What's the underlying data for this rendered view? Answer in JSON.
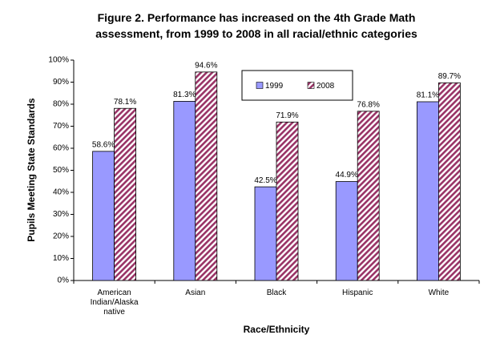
{
  "chart_data": {
    "type": "bar",
    "title": "Figure 2.  Performance has increased on the 4th Grade Math assessment, from 1999 to 2008 in all racial/ethnic categories",
    "x_label": "Race/Ethnicity",
    "y_label": "Pupils Meeting State Standards",
    "categories": [
      "American Indian/Alaska native",
      "Asian",
      "Black",
      "Hispanic",
      "White"
    ],
    "series": [
      {
        "name": "1999",
        "color": "#9999ff",
        "values": [
          58.6,
          81.3,
          42.5,
          44.9,
          81.1
        ],
        "value_labels": [
          "58.6%",
          "81.3%",
          "42.5%",
          "44.9%",
          "81.1%"
        ]
      },
      {
        "name": "2008",
        "color": "#993366",
        "pattern": "hatch",
        "values": [
          78.1,
          94.6,
          71.9,
          76.8,
          89.7
        ],
        "value_labels": [
          "78.1%",
          "94.6%",
          "71.9%",
          "76.8%",
          "89.7%"
        ]
      }
    ],
    "ylim": [
      0,
      100
    ],
    "yticks": [
      {
        "value": 0,
        "label": "0%"
      },
      {
        "value": 10,
        "label": "10%"
      },
      {
        "value": 20,
        "label": "20%"
      },
      {
        "value": 30,
        "label": "30%"
      },
      {
        "value": 40,
        "label": "40%"
      },
      {
        "value": 50,
        "label": "50%"
      },
      {
        "value": 60,
        "label": "60%"
      },
      {
        "value": 70,
        "label": "70%"
      },
      {
        "value": 80,
        "label": "80%"
      },
      {
        "value": 90,
        "label": "90%"
      },
      {
        "value": 100,
        "label": "100%"
      }
    ],
    "grid": false,
    "legend": "top-center"
  }
}
